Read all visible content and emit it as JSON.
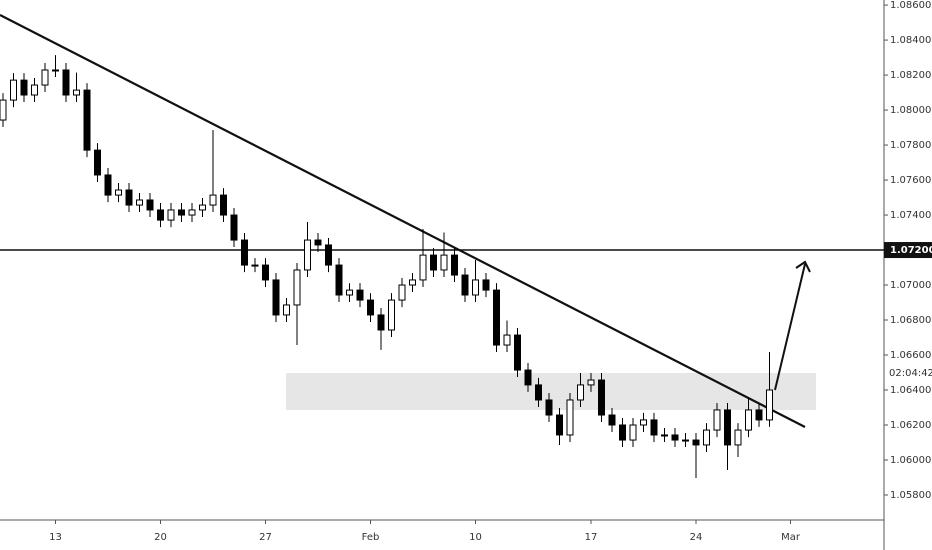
{
  "chart_data": {
    "type": "candlestick",
    "categories": [
      null,
      null,
      null,
      null,
      null,
      "13",
      null,
      null,
      null,
      null,
      null,
      null,
      null,
      null,
      null,
      "20",
      null,
      null,
      null,
      null,
      null,
      null,
      null,
      null,
      null,
      "27",
      null,
      null,
      null,
      null,
      null,
      null,
      null,
      null,
      null,
      "Feb",
      null,
      null,
      null,
      null,
      null,
      null,
      null,
      null,
      null,
      "10",
      null,
      null,
      null,
      null,
      null,
      null,
      null,
      null,
      null,
      null,
      "17",
      null,
      null,
      null,
      null,
      null,
      null,
      null,
      null,
      null,
      "24",
      null,
      null,
      null,
      null,
      null,
      null,
      null,
      null,
      "Mar"
    ],
    "open": [
      1.07943,
      1.08057,
      1.08171,
      1.08086,
      1.08143,
      1.08229,
      1.08229,
      1.08086,
      1.08114,
      1.07771,
      1.07629,
      1.07514,
      1.07543,
      1.07457,
      1.07486,
      1.07429,
      1.07371,
      1.07429,
      1.074,
      1.07429,
      1.07457,
      1.07514,
      1.074,
      1.07257,
      1.07114,
      1.07114,
      1.07029,
      1.06829,
      1.06886,
      1.07086,
      1.07257,
      1.07229,
      1.07114,
      1.06943,
      1.06971,
      1.06914,
      1.06829,
      1.06743,
      1.06914,
      1.07,
      1.07029,
      1.07171,
      1.07086,
      1.07171,
      1.07057,
      1.06943,
      1.07029,
      1.06971,
      1.06657,
      1.06714,
      1.06514,
      1.06429,
      1.06343,
      1.06257,
      1.06143,
      1.06343,
      1.06429,
      1.06457,
      1.06257,
      1.062,
      1.06114,
      1.062,
      1.06229,
      1.06143,
      1.06143,
      1.06114,
      1.06114,
      1.06086,
      1.06171,
      1.06286,
      1.06086,
      1.06171,
      1.06286,
      1.06229,
      null,
      null
    ],
    "high": [
      1.08097,
      1.08211,
      1.08211,
      1.08183,
      1.08269,
      1.08314,
      1.08269,
      1.08214,
      1.08154,
      1.07811,
      1.07669,
      1.07583,
      1.07583,
      1.07526,
      1.07526,
      1.07469,
      1.07469,
      1.07469,
      1.07469,
      1.07497,
      1.07886,
      1.07554,
      1.0744,
      1.07297,
      1.07154,
      1.07154,
      1.07069,
      1.06926,
      1.07126,
      1.0736,
      1.07297,
      1.07269,
      1.07154,
      1.07011,
      1.07011,
      1.06954,
      1.06869,
      1.06954,
      1.0704,
      1.07069,
      1.0732,
      1.07211,
      1.073,
      1.07211,
      1.07097,
      1.07143,
      1.07069,
      1.07011,
      1.06797,
      1.06754,
      1.06554,
      1.06469,
      1.06383,
      1.06297,
      1.06383,
      1.06497,
      1.06497,
      1.06497,
      1.06297,
      1.0624,
      1.0624,
      1.06269,
      1.06269,
      1.06183,
      1.06183,
      1.06154,
      1.06154,
      1.06211,
      1.06326,
      1.06326,
      1.06211,
      1.06354,
      1.06326,
      1.06617,
      null,
      null
    ],
    "low": [
      1.07903,
      1.08017,
      1.08046,
      1.08046,
      1.08103,
      1.08189,
      1.08046,
      1.08046,
      1.07731,
      1.07589,
      1.07474,
      1.07474,
      1.07417,
      1.07417,
      1.07389,
      1.07331,
      1.07331,
      1.0736,
      1.0736,
      1.07389,
      1.07417,
      1.0736,
      1.07217,
      1.07074,
      1.07074,
      1.06989,
      1.06789,
      1.06789,
      1.06657,
      1.07046,
      1.07189,
      1.07074,
      1.06903,
      1.06903,
      1.06874,
      1.06789,
      1.06629,
      1.06703,
      1.06874,
      1.0696,
      1.06989,
      1.07046,
      1.07046,
      1.07017,
      1.06903,
      1.06903,
      1.06931,
      1.06617,
      1.06617,
      1.06474,
      1.06389,
      1.06303,
      1.06217,
      1.06086,
      1.06103,
      1.06303,
      1.06389,
      1.06217,
      1.0616,
      1.06074,
      1.06074,
      1.0616,
      1.06103,
      1.06103,
      1.06074,
      1.06074,
      1.05897,
      1.06046,
      1.06131,
      1.05943,
      1.06017,
      1.06131,
      1.06189,
      1.06189,
      null,
      null
    ],
    "close": [
      1.08057,
      1.08171,
      1.08086,
      1.08143,
      1.08229,
      1.08229,
      1.08086,
      1.08114,
      1.07771,
      1.07629,
      1.07514,
      1.07543,
      1.07457,
      1.07486,
      1.07429,
      1.07371,
      1.07429,
      1.074,
      1.07429,
      1.07457,
      1.07514,
      1.074,
      1.07257,
      1.07114,
      1.07114,
      1.07029,
      1.06829,
      1.06886,
      1.07086,
      1.07257,
      1.07229,
      1.07114,
      1.06943,
      1.06971,
      1.06914,
      1.06829,
      1.06743,
      1.06914,
      1.07,
      1.07029,
      1.07171,
      1.07086,
      1.07171,
      1.07057,
      1.06943,
      1.07029,
      1.06971,
      1.06657,
      1.06714,
      1.06514,
      1.06429,
      1.06343,
      1.06257,
      1.06143,
      1.06343,
      1.06429,
      1.06457,
      1.06257,
      1.062,
      1.06114,
      1.062,
      1.06229,
      1.06143,
      1.06143,
      1.06114,
      1.06114,
      1.06086,
      1.06171,
      1.06286,
      1.06086,
      1.06171,
      1.06286,
      1.06229,
      1.064,
      null,
      null
    ],
    "ylim": [
      1.05657,
      1.08629
    ],
    "yticks": [
      {
        "value": 1.086,
        "label": "1.08600"
      },
      {
        "value": 1.084,
        "label": "1.08400"
      },
      {
        "value": 1.082,
        "label": "1.08200"
      },
      {
        "value": 1.08,
        "label": "1.08000"
      },
      {
        "value": 1.078,
        "label": "1.07800"
      },
      {
        "value": 1.076,
        "label": "1.07600"
      },
      {
        "value": 1.074,
        "label": "1.07400"
      },
      {
        "value": 1.07,
        "label": "1.07000"
      },
      {
        "value": 1.068,
        "label": "1.06800"
      },
      {
        "value": 1.066,
        "label": "1.06600"
      },
      {
        "value": 1.064,
        "label": "1.06400"
      },
      {
        "value": 1.062,
        "label": "1.06200"
      },
      {
        "value": 1.06,
        "label": "1.06000"
      },
      {
        "value": 1.058,
        "label": "1.05800"
      }
    ],
    "hline": {
      "value": 1.072,
      "label": "1.07200"
    },
    "countdown": "02:04:42",
    "grid": false,
    "up_color": "#ffffff",
    "down_color": "#000000"
  }
}
